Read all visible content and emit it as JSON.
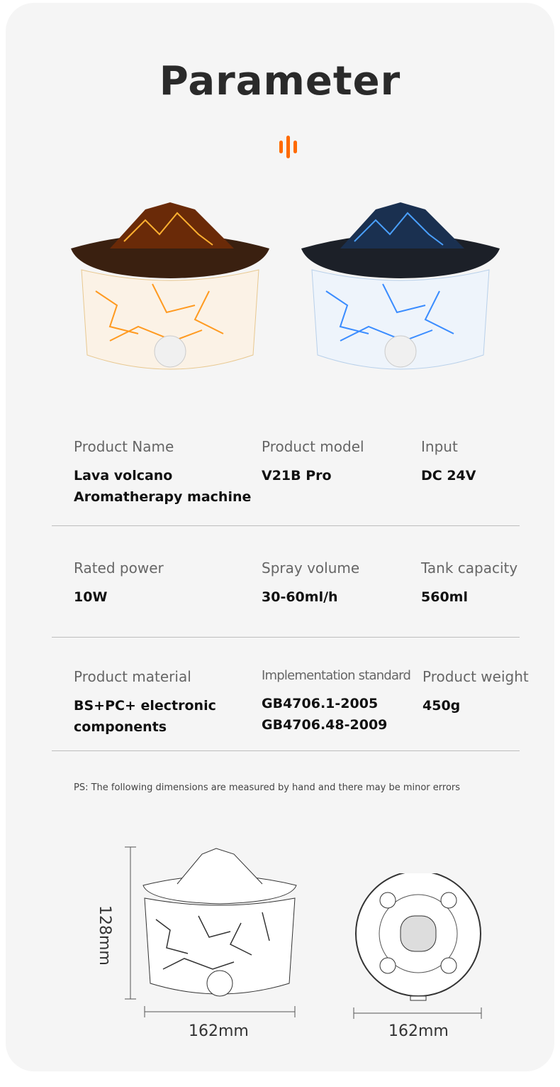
{
  "title": "Parameter",
  "accent_color": "#ff6a00",
  "logo_icon": "sound-bars-icon",
  "products": [
    {
      "variant": "orange-flame",
      "color": "#ff8a1c"
    },
    {
      "variant": "blue-flame",
      "color": "#2f8cff"
    }
  ],
  "specs": [
    {
      "label": "Product Name",
      "value": "Lava volcano Aromatherapy machine"
    },
    {
      "label": "Product model",
      "value": "V21B Pro"
    },
    {
      "label": "Input",
      "value": "DC 24V"
    },
    {
      "label": "Rated power",
      "value": "10W"
    },
    {
      "label": "Spray volume",
      "value": "30-60ml/h"
    },
    {
      "label": "Tank capacity",
      "value": "560ml"
    },
    {
      "label": "Product material",
      "value": "BS+PC+ electronic components"
    },
    {
      "label": "Implementation standard",
      "value": "GB4706.1-2005\nGB4706.48-2009"
    },
    {
      "label": "Product weight",
      "value": "450g"
    }
  ],
  "note": "PS: The following dimensions are measured by hand and there may be minor errors",
  "dimensions": {
    "height": "128mm",
    "width_front": "162mm",
    "width_bottom": "162mm"
  }
}
